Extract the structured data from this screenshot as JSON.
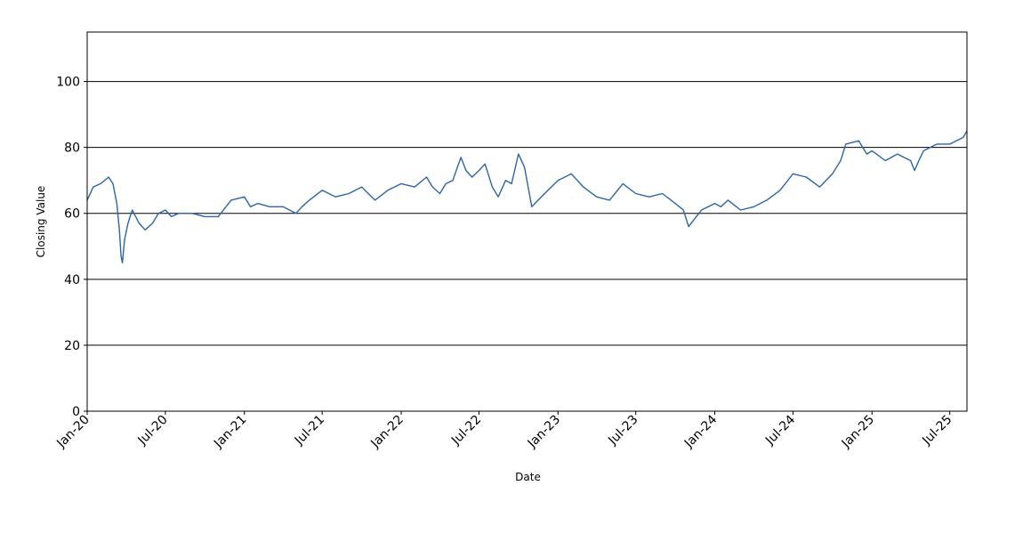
{
  "chart_data": {
    "type": "line",
    "title": "",
    "xlabel": "Date",
    "ylabel": "Closing Value",
    "ylim": [
      0,
      115
    ],
    "xlim": [
      "2020-01-01",
      "2025-08-10"
    ],
    "grid": {
      "horizontal": true,
      "vertical": false
    },
    "y_ticks": [
      0,
      20,
      40,
      60,
      80,
      100
    ],
    "x_ticks": [
      {
        "date": "2020-01-01",
        "label": "Jan-20"
      },
      {
        "date": "2020-07-01",
        "label": "Jul-20"
      },
      {
        "date": "2021-01-01",
        "label": "Jan-21"
      },
      {
        "date": "2021-07-01",
        "label": "Jul-21"
      },
      {
        "date": "2022-01-01",
        "label": "Jan-22"
      },
      {
        "date": "2022-07-01",
        "label": "Jul-22"
      },
      {
        "date": "2023-01-01",
        "label": "Jan-23"
      },
      {
        "date": "2023-07-01",
        "label": "Jul-23"
      },
      {
        "date": "2024-01-01",
        "label": "Jan-24"
      },
      {
        "date": "2024-07-01",
        "label": "Jul-24"
      },
      {
        "date": "2025-01-01",
        "label": "Jan-25"
      },
      {
        "date": "2025-07-01",
        "label": "Jul-25"
      }
    ],
    "series": [
      {
        "color": "#2b65a8",
        "x": [
          "2020-01-01",
          "2020-01-15",
          "2020-02-01",
          "2020-02-20",
          "2020-03-01",
          "2020-03-10",
          "2020-03-16",
          "2020-03-20",
          "2020-03-23",
          "2020-03-28",
          "2020-04-05",
          "2020-04-15",
          "2020-05-01",
          "2020-05-15",
          "2020-06-01",
          "2020-06-15",
          "2020-07-01",
          "2020-07-15",
          "2020-08-01",
          "2020-09-01",
          "2020-10-01",
          "2020-11-01",
          "2020-12-01",
          "2021-01-01",
          "2021-01-15",
          "2021-02-01",
          "2021-03-01",
          "2021-04-01",
          "2021-05-01",
          "2021-05-15",
          "2021-06-01",
          "2021-07-01",
          "2021-08-01",
          "2021-09-01",
          "2021-10-01",
          "2021-11-01",
          "2021-12-01",
          "2022-01-01",
          "2022-02-01",
          "2022-03-01",
          "2022-03-15",
          "2022-04-01",
          "2022-04-15",
          "2022-05-01",
          "2022-05-20",
          "2022-06-01",
          "2022-06-15",
          "2022-07-01",
          "2022-07-15",
          "2022-08-01",
          "2022-08-15",
          "2022-09-01",
          "2022-09-15",
          "2022-10-01",
          "2022-10-15",
          "2022-11-01",
          "2022-12-01",
          "2023-01-01",
          "2023-02-01",
          "2023-03-01",
          "2023-04-01",
          "2023-05-01",
          "2023-06-01",
          "2023-07-01",
          "2023-08-01",
          "2023-09-01",
          "2023-10-01",
          "2023-10-20",
          "2023-11-01",
          "2023-12-01",
          "2024-01-01",
          "2024-01-15",
          "2024-02-01",
          "2024-03-01",
          "2024-04-01",
          "2024-05-01",
          "2024-06-01",
          "2024-07-01",
          "2024-08-01",
          "2024-09-01",
          "2024-10-01",
          "2024-10-20",
          "2024-11-01",
          "2024-12-01",
          "2024-12-20",
          "2025-01-01",
          "2025-02-01",
          "2025-03-01",
          "2025-04-01",
          "2025-04-10",
          "2025-04-20",
          "2025-05-01",
          "2025-06-01",
          "2025-07-01",
          "2025-08-01",
          "2025-08-10"
        ],
        "y": [
          64,
          68,
          69,
          71,
          69,
          63,
          55,
          47,
          45,
          52,
          57,
          61,
          57,
          55,
          57,
          60,
          61,
          59,
          60,
          60,
          59,
          59,
          64,
          65,
          62,
          63,
          62,
          62,
          60,
          62,
          64,
          67,
          65,
          66,
          68,
          64,
          67,
          69,
          68,
          71,
          68,
          66,
          69,
          70,
          77,
          73,
          71,
          73,
          75,
          68,
          65,
          70,
          69,
          78,
          74,
          62,
          66,
          70,
          72,
          68,
          65,
          64,
          69,
          66,
          65,
          66,
          63,
          61,
          56,
          61,
          63,
          62,
          64,
          61,
          62,
          64,
          67,
          72,
          71,
          68,
          72,
          76,
          81,
          82,
          78,
          79,
          76,
          78,
          76,
          73,
          76,
          79,
          81,
          81,
          83,
          85
        ]
      }
    ]
  }
}
